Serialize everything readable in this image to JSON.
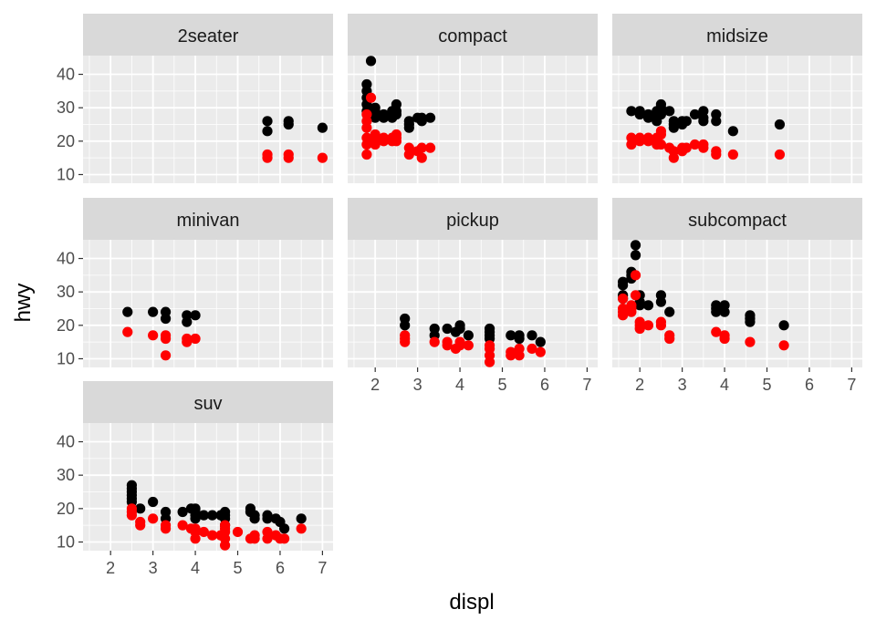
{
  "chart_data": {
    "type": "scatter",
    "xlabel": "displ",
    "ylabel": "hwy",
    "xlim": [
      1.35,
      7.25
    ],
    "ylim": [
      7.4,
      45.6
    ],
    "x_ticks": [
      2,
      3,
      4,
      5,
      6,
      7
    ],
    "y_ticks": [
      10,
      20,
      30,
      40
    ],
    "grid": true,
    "facet_by": "class",
    "colors": {
      "black": "#000000",
      "red": "#ff0000",
      "strip": "#d9d9d9",
      "panel": "#ebebeb",
      "grid": "#ffffff"
    },
    "panels": [
      {
        "label": "2seater",
        "black": [
          [
            5.7,
            26
          ],
          [
            5.7,
            23
          ],
          [
            6.2,
            26
          ],
          [
            6.2,
            25
          ],
          [
            7,
            24
          ]
        ],
        "red": [
          [
            5.7,
            16
          ],
          [
            5.7,
            15
          ],
          [
            6.2,
            16
          ],
          [
            6.2,
            15
          ],
          [
            7,
            15
          ]
        ]
      },
      {
        "label": "compact",
        "black": [
          [
            1.8,
            37
          ],
          [
            1.8,
            35
          ],
          [
            1.8,
            33
          ],
          [
            1.8,
            31
          ],
          [
            1.8,
            29
          ],
          [
            1.9,
            44
          ],
          [
            2,
            30
          ],
          [
            2,
            29
          ],
          [
            2,
            28
          ],
          [
            2,
            27
          ],
          [
            2.2,
            28
          ],
          [
            2.2,
            27
          ],
          [
            2.4,
            29
          ],
          [
            2.4,
            27
          ],
          [
            2.5,
            31
          ],
          [
            2.5,
            29
          ],
          [
            2.5,
            28
          ],
          [
            2.8,
            26
          ],
          [
            2.8,
            25
          ],
          [
            2.8,
            24
          ],
          [
            3,
            27
          ],
          [
            3.1,
            27
          ],
          [
            3.1,
            26
          ],
          [
            3.3,
            27
          ]
        ],
        "red": [
          [
            1.8,
            28
          ],
          [
            1.8,
            26
          ],
          [
            1.8,
            24
          ],
          [
            1.8,
            21
          ],
          [
            1.8,
            19
          ],
          [
            1.8,
            16
          ],
          [
            1.9,
            33
          ],
          [
            2,
            22
          ],
          [
            2,
            21
          ],
          [
            2,
            20
          ],
          [
            2,
            19
          ],
          [
            2.2,
            21
          ],
          [
            2.2,
            20
          ],
          [
            2.4,
            21
          ],
          [
            2.4,
            20
          ],
          [
            2.5,
            22
          ],
          [
            2.5,
            21
          ],
          [
            2.5,
            20
          ],
          [
            2.8,
            18
          ],
          [
            2.8,
            16
          ],
          [
            3,
            17
          ],
          [
            3.1,
            18
          ],
          [
            3.1,
            15
          ],
          [
            3.3,
            18
          ]
        ]
      },
      {
        "label": "midsize",
        "black": [
          [
            1.8,
            29
          ],
          [
            2,
            29
          ],
          [
            2,
            28
          ],
          [
            2.2,
            28
          ],
          [
            2.2,
            27
          ],
          [
            2.4,
            29
          ],
          [
            2.4,
            27
          ],
          [
            2.4,
            26
          ],
          [
            2.5,
            31
          ],
          [
            2.5,
            30
          ],
          [
            2.5,
            28
          ],
          [
            2.7,
            29
          ],
          [
            2.8,
            26
          ],
          [
            2.8,
            25
          ],
          [
            2.8,
            24
          ],
          [
            3,
            26
          ],
          [
            3,
            25
          ],
          [
            3.1,
            26
          ],
          [
            3.3,
            28
          ],
          [
            3.5,
            29
          ],
          [
            3.5,
            27
          ],
          [
            3.5,
            26
          ],
          [
            3.8,
            28
          ],
          [
            3.8,
            26
          ],
          [
            4.2,
            23
          ],
          [
            5.3,
            25
          ]
        ],
        "red": [
          [
            1.8,
            21
          ],
          [
            1.8,
            19
          ],
          [
            2,
            21
          ],
          [
            2,
            20
          ],
          [
            2.2,
            21
          ],
          [
            2.2,
            20
          ],
          [
            2.4,
            21
          ],
          [
            2.4,
            19
          ],
          [
            2.5,
            23
          ],
          [
            2.5,
            22
          ],
          [
            2.5,
            19
          ],
          [
            2.7,
            18
          ],
          [
            2.8,
            17
          ],
          [
            2.8,
            15
          ],
          [
            3,
            18
          ],
          [
            3,
            17
          ],
          [
            3.1,
            18
          ],
          [
            3.3,
            19
          ],
          [
            3.5,
            19
          ],
          [
            3.5,
            18
          ],
          [
            3.8,
            17
          ],
          [
            3.8,
            16
          ],
          [
            4.2,
            16
          ],
          [
            5.3,
            16
          ]
        ]
      },
      {
        "label": "minivan",
        "black": [
          [
            2.4,
            24
          ],
          [
            3,
            24
          ],
          [
            3.3,
            24
          ],
          [
            3.3,
            22
          ],
          [
            3.8,
            23
          ],
          [
            3.8,
            21
          ],
          [
            4,
            23
          ]
        ],
        "red": [
          [
            2.4,
            18
          ],
          [
            3,
            17
          ],
          [
            3.3,
            17
          ],
          [
            3.3,
            16
          ],
          [
            3.3,
            11
          ],
          [
            3.8,
            16
          ],
          [
            3.8,
            15
          ],
          [
            4,
            16
          ]
        ]
      },
      {
        "label": "pickup",
        "black": [
          [
            2.7,
            22
          ],
          [
            2.7,
            20
          ],
          [
            3.4,
            19
          ],
          [
            3.4,
            17
          ],
          [
            3.7,
            19
          ],
          [
            3.9,
            18
          ],
          [
            4,
            20
          ],
          [
            4,
            19
          ],
          [
            4.2,
            17
          ],
          [
            4.7,
            19
          ],
          [
            4.7,
            18
          ],
          [
            4.7,
            17
          ],
          [
            4.7,
            16
          ],
          [
            5.2,
            17
          ],
          [
            5.4,
            17
          ],
          [
            5.4,
            16
          ],
          [
            5.7,
            17
          ],
          [
            5.9,
            15
          ]
        ],
        "red": [
          [
            2.7,
            17
          ],
          [
            2.7,
            16
          ],
          [
            2.7,
            15
          ],
          [
            3.4,
            15
          ],
          [
            3.7,
            15
          ],
          [
            3.7,
            14
          ],
          [
            3.9,
            13
          ],
          [
            4,
            15
          ],
          [
            4,
            14
          ],
          [
            4.2,
            14
          ],
          [
            4.7,
            14
          ],
          [
            4.7,
            13
          ],
          [
            4.7,
            11
          ],
          [
            4.7,
            9
          ],
          [
            5.2,
            11
          ],
          [
            5.2,
            12
          ],
          [
            5.4,
            13
          ],
          [
            5.4,
            11
          ],
          [
            5.7,
            13
          ],
          [
            5.9,
            12
          ]
        ]
      },
      {
        "label": "subcompact",
        "black": [
          [
            1.6,
            33
          ],
          [
            1.6,
            32
          ],
          [
            1.6,
            29
          ],
          [
            1.6,
            28
          ],
          [
            1.8,
            35
          ],
          [
            1.8,
            34
          ],
          [
            1.8,
            36
          ],
          [
            1.9,
            44
          ],
          [
            1.9,
            41
          ],
          [
            2,
            29
          ],
          [
            2,
            27
          ],
          [
            2,
            26
          ],
          [
            2.2,
            26
          ],
          [
            2.5,
            29
          ],
          [
            2.5,
            27
          ],
          [
            2.7,
            24
          ],
          [
            3.8,
            26
          ],
          [
            3.8,
            25
          ],
          [
            3.8,
            24
          ],
          [
            4,
            26
          ],
          [
            4,
            24
          ],
          [
            4.6,
            23
          ],
          [
            4.6,
            22
          ],
          [
            4.6,
            21
          ],
          [
            5.4,
            20
          ]
        ],
        "red": [
          [
            1.6,
            28
          ],
          [
            1.6,
            25
          ],
          [
            1.6,
            24
          ],
          [
            1.6,
            23
          ],
          [
            1.8,
            26
          ],
          [
            1.8,
            25
          ],
          [
            1.8,
            24
          ],
          [
            1.9,
            35
          ],
          [
            1.9,
            29
          ],
          [
            2,
            21
          ],
          [
            2,
            20
          ],
          [
            2,
            19
          ],
          [
            2.2,
            20
          ],
          [
            2.5,
            21
          ],
          [
            2.5,
            20
          ],
          [
            2.7,
            17
          ],
          [
            2.7,
            16
          ],
          [
            3.8,
            18
          ],
          [
            4,
            17
          ],
          [
            4,
            16
          ],
          [
            4.6,
            15
          ],
          [
            5.4,
            14
          ]
        ]
      },
      {
        "label": "suv",
        "black": [
          [
            2.5,
            27
          ],
          [
            2.5,
            26
          ],
          [
            2.5,
            25
          ],
          [
            2.5,
            24
          ],
          [
            2.5,
            23
          ],
          [
            2.5,
            22
          ],
          [
            2.7,
            20
          ],
          [
            3,
            22
          ],
          [
            3.3,
            19
          ],
          [
            3.3,
            17
          ],
          [
            3.7,
            19
          ],
          [
            3.9,
            20
          ],
          [
            4,
            20
          ],
          [
            4,
            19
          ],
          [
            4,
            18
          ],
          [
            4,
            17
          ],
          [
            4.2,
            18
          ],
          [
            4.4,
            18
          ],
          [
            4.6,
            18
          ],
          [
            4.7,
            19
          ],
          [
            4.7,
            18
          ],
          [
            4.7,
            17
          ],
          [
            4.7,
            15
          ],
          [
            5.3,
            20
          ],
          [
            5.3,
            19
          ],
          [
            5.4,
            18
          ],
          [
            5.4,
            17
          ],
          [
            5.7,
            18
          ],
          [
            5.7,
            17
          ],
          [
            5.9,
            17
          ],
          [
            6,
            16
          ],
          [
            6.1,
            14
          ],
          [
            6.5,
            17
          ]
        ],
        "red": [
          [
            2.5,
            20
          ],
          [
            2.5,
            19
          ],
          [
            2.5,
            18
          ],
          [
            2.7,
            16
          ],
          [
            2.7,
            15
          ],
          [
            3,
            17
          ],
          [
            3.3,
            15
          ],
          [
            3.3,
            14
          ],
          [
            3.7,
            15
          ],
          [
            3.9,
            14
          ],
          [
            4,
            14
          ],
          [
            4,
            13
          ],
          [
            4,
            11
          ],
          [
            4.2,
            13
          ],
          [
            4.4,
            12
          ],
          [
            4.6,
            12
          ],
          [
            4.7,
            15
          ],
          [
            4.7,
            14
          ],
          [
            4.7,
            13
          ],
          [
            4.7,
            11
          ],
          [
            4.7,
            9
          ],
          [
            5,
            13
          ],
          [
            5.3,
            11
          ],
          [
            5.4,
            12
          ],
          [
            5.4,
            11
          ],
          [
            5.7,
            13
          ],
          [
            5.7,
            11
          ],
          [
            5.9,
            12
          ],
          [
            6,
            11
          ],
          [
            6.1,
            11
          ],
          [
            6.5,
            14
          ]
        ]
      }
    ]
  }
}
